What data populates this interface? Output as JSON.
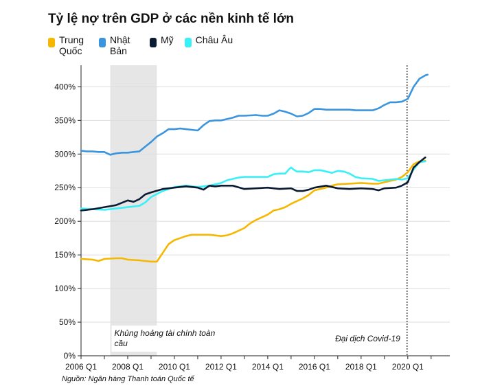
{
  "chart_data": {
    "type": "line",
    "title": "Tỷ lệ nợ trên GDP ở các nền kinh tế lớn",
    "xlabel": "",
    "ylabel": "",
    "ylim": [
      0,
      430
    ],
    "yticks": [
      0,
      50,
      100,
      150,
      200,
      250,
      300,
      350,
      400
    ],
    "ytick_labels": [
      "0%",
      "50%",
      "100%",
      "150%",
      "200%",
      "250%",
      "300%",
      "350%",
      "400%"
    ],
    "xlim": [
      2006,
      2021.8
    ],
    "xticks": [
      2006,
      2008,
      2010,
      2012,
      2014,
      2016,
      2018,
      2020
    ],
    "xtick_labels": [
      "2006 Q1",
      "2008 Q1",
      "2010 Q1",
      "2012 Q1",
      "2014 Q1",
      "2016 Q1",
      "2018 Q1",
      "2020 Q1"
    ],
    "grid": true,
    "legend_position": "top-left",
    "shaded_region": {
      "x": [
        2007.25,
        2009.25
      ],
      "label": "Khủng hoảng tài chính toàn cầu"
    },
    "vline": {
      "x": 2019.97,
      "label": "Đại dịch Covid-19"
    },
    "series": [
      {
        "name": "Trung Quốc",
        "color": "#F5B700",
        "points": [
          [
            2006,
            144
          ],
          [
            2006.5,
            143
          ],
          [
            2006.75,
            141
          ],
          [
            2007,
            144
          ],
          [
            2007.5,
            145
          ],
          [
            2007.75,
            145
          ],
          [
            2008,
            143
          ],
          [
            2008.5,
            142
          ],
          [
            2008.75,
            141
          ],
          [
            2009,
            140
          ],
          [
            2009.25,
            140
          ],
          [
            2009.5,
            153
          ],
          [
            2009.75,
            166
          ],
          [
            2010,
            172
          ],
          [
            2010.25,
            175
          ],
          [
            2010.5,
            178
          ],
          [
            2010.75,
            180
          ],
          [
            2011,
            180
          ],
          [
            2011.5,
            180
          ],
          [
            2012,
            178
          ],
          [
            2012.25,
            179
          ],
          [
            2012.5,
            182
          ],
          [
            2012.75,
            186
          ],
          [
            2013,
            190
          ],
          [
            2013.25,
            197
          ],
          [
            2013.5,
            202
          ],
          [
            2013.75,
            206
          ],
          [
            2014,
            210
          ],
          [
            2014.25,
            216
          ],
          [
            2014.5,
            218
          ],
          [
            2014.75,
            221
          ],
          [
            2015,
            226
          ],
          [
            2015.25,
            230
          ],
          [
            2015.5,
            234
          ],
          [
            2015.75,
            239
          ],
          [
            2016,
            246
          ],
          [
            2016.25,
            248
          ],
          [
            2016.5,
            250
          ],
          [
            2016.75,
            253
          ],
          [
            2017,
            255
          ],
          [
            2017.5,
            256
          ],
          [
            2018,
            257
          ],
          [
            2018.5,
            256
          ],
          [
            2018.75,
            256
          ],
          [
            2019,
            258
          ],
          [
            2019.25,
            260
          ],
          [
            2019.5,
            262
          ],
          [
            2019.75,
            266
          ],
          [
            2020,
            273
          ],
          [
            2020.25,
            285
          ],
          [
            2020.5,
            289
          ],
          [
            2020.75,
            290
          ]
        ]
      },
      {
        "name": "Nhật Bản",
        "color": "#3B95DE",
        "points": [
          [
            2006,
            305
          ],
          [
            2006.25,
            304
          ],
          [
            2006.5,
            304
          ],
          [
            2006.75,
            303
          ],
          [
            2007,
            303
          ],
          [
            2007.25,
            299
          ],
          [
            2007.5,
            301
          ],
          [
            2007.75,
            302
          ],
          [
            2008,
            302
          ],
          [
            2008.25,
            303
          ],
          [
            2008.5,
            304
          ],
          [
            2008.75,
            311
          ],
          [
            2009,
            318
          ],
          [
            2009.25,
            326
          ],
          [
            2009.5,
            331
          ],
          [
            2009.75,
            337
          ],
          [
            2010,
            337
          ],
          [
            2010.25,
            338
          ],
          [
            2010.5,
            337
          ],
          [
            2010.75,
            336
          ],
          [
            2011,
            335
          ],
          [
            2011.25,
            343
          ],
          [
            2011.5,
            349
          ],
          [
            2011.75,
            350
          ],
          [
            2012,
            350
          ],
          [
            2012.25,
            352
          ],
          [
            2012.5,
            354
          ],
          [
            2012.75,
            357
          ],
          [
            2013,
            357
          ],
          [
            2013.5,
            358
          ],
          [
            2013.75,
            357
          ],
          [
            2014,
            357
          ],
          [
            2014.25,
            360
          ],
          [
            2014.5,
            365
          ],
          [
            2014.75,
            363
          ],
          [
            2015,
            360
          ],
          [
            2015.25,
            356
          ],
          [
            2015.5,
            357
          ],
          [
            2015.75,
            361
          ],
          [
            2016,
            367
          ],
          [
            2016.25,
            367
          ],
          [
            2016.5,
            366
          ],
          [
            2016.75,
            366
          ],
          [
            2017,
            366
          ],
          [
            2017.5,
            366
          ],
          [
            2017.75,
            365
          ],
          [
            2018,
            365
          ],
          [
            2018.5,
            365
          ],
          [
            2018.75,
            368
          ],
          [
            2019,
            373
          ],
          [
            2019.25,
            377
          ],
          [
            2019.5,
            377
          ],
          [
            2019.75,
            378
          ],
          [
            2020,
            382
          ],
          [
            2020.25,
            400
          ],
          [
            2020.5,
            412
          ],
          [
            2020.75,
            417
          ],
          [
            2020.85,
            418
          ]
        ]
      },
      {
        "name": "Mỹ",
        "color": "#0A1B33",
        "points": [
          [
            2006,
            216
          ],
          [
            2006.5,
            218
          ],
          [
            2007,
            221
          ],
          [
            2007.5,
            224
          ],
          [
            2008,
            231
          ],
          [
            2008.25,
            229
          ],
          [
            2008.5,
            233
          ],
          [
            2008.75,
            240
          ],
          [
            2009,
            243
          ],
          [
            2009.5,
            248
          ],
          [
            2010,
            250
          ],
          [
            2010.5,
            252
          ],
          [
            2011,
            250
          ],
          [
            2011.25,
            247
          ],
          [
            2011.5,
            253
          ],
          [
            2011.75,
            252
          ],
          [
            2012,
            253
          ],
          [
            2012.5,
            253
          ],
          [
            2013,
            248
          ],
          [
            2013.5,
            249
          ],
          [
            2014,
            250
          ],
          [
            2014.5,
            248
          ],
          [
            2015,
            249
          ],
          [
            2015.25,
            245
          ],
          [
            2015.5,
            245
          ],
          [
            2015.75,
            247
          ],
          [
            2016,
            250
          ],
          [
            2016.5,
            253
          ],
          [
            2017,
            249
          ],
          [
            2017.5,
            248
          ],
          [
            2018,
            249
          ],
          [
            2018.5,
            248
          ],
          [
            2018.75,
            246
          ],
          [
            2019,
            249
          ],
          [
            2019.5,
            250
          ],
          [
            2019.75,
            253
          ],
          [
            2020,
            258
          ],
          [
            2020.25,
            280
          ],
          [
            2020.5,
            288
          ],
          [
            2020.75,
            295
          ]
        ]
      },
      {
        "name": "Châu Âu",
        "color": "#37F1F7",
        "points": [
          [
            2006,
            219
          ],
          [
            2006.5,
            218
          ],
          [
            2007,
            217
          ],
          [
            2007.5,
            219
          ],
          [
            2008,
            221
          ],
          [
            2008.5,
            223
          ],
          [
            2008.75,
            228
          ],
          [
            2009,
            236
          ],
          [
            2009.5,
            245
          ],
          [
            2010,
            251
          ],
          [
            2010.5,
            253
          ],
          [
            2011,
            251
          ],
          [
            2011.5,
            253
          ],
          [
            2012,
            257
          ],
          [
            2012.25,
            261
          ],
          [
            2012.5,
            263
          ],
          [
            2012.75,
            265
          ],
          [
            2013,
            266
          ],
          [
            2013.5,
            266
          ],
          [
            2014,
            266
          ],
          [
            2014.25,
            270
          ],
          [
            2014.5,
            271
          ],
          [
            2014.75,
            271
          ],
          [
            2014.9,
            277
          ],
          [
            2015,
            280
          ],
          [
            2015.1,
            277
          ],
          [
            2015.25,
            274
          ],
          [
            2015.5,
            274
          ],
          [
            2015.75,
            273
          ],
          [
            2016,
            276
          ],
          [
            2016.25,
            276
          ],
          [
            2016.5,
            274
          ],
          [
            2016.75,
            272
          ],
          [
            2017,
            275
          ],
          [
            2017.25,
            274
          ],
          [
            2017.5,
            271
          ],
          [
            2017.75,
            266
          ],
          [
            2018,
            264
          ],
          [
            2018.5,
            263
          ],
          [
            2018.75,
            260
          ],
          [
            2019,
            261
          ],
          [
            2019.25,
            262
          ],
          [
            2019.5,
            263
          ],
          [
            2019.75,
            262
          ],
          [
            2020,
            264
          ],
          [
            2020.25,
            277
          ],
          [
            2020.5,
            288
          ],
          [
            2020.75,
            289
          ]
        ]
      }
    ]
  },
  "source": "Nguồn: Ngân hàng Thanh toán Quốc tế"
}
